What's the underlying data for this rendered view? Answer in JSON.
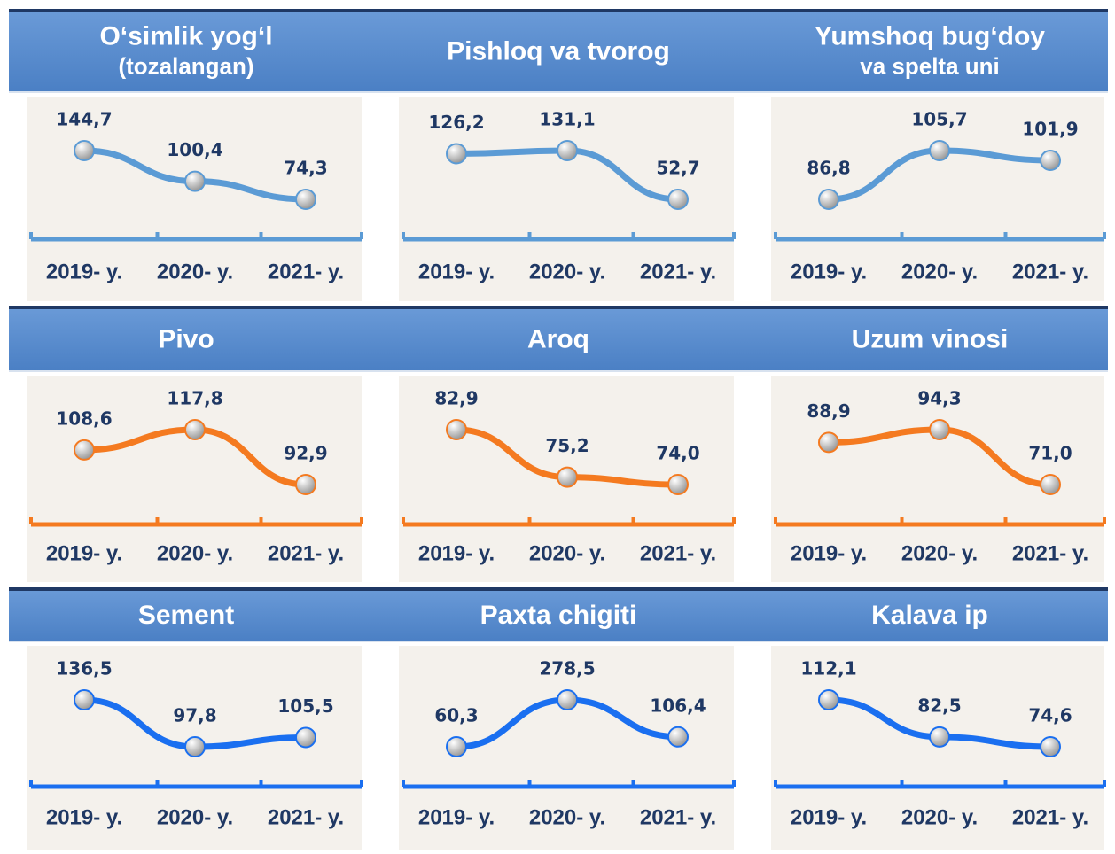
{
  "chart_data": [
    {
      "type": "line",
      "title": [
        "O‘simlik yog‘l",
        "(tozalangan)"
      ],
      "categories": [
        "2019- y.",
        "2020- y.",
        "2021- y."
      ],
      "values": [
        144.7,
        100.4,
        74.3
      ],
      "value_labels": [
        "144,7",
        "100,4",
        "74,3"
      ],
      "color": "#5b9bd5"
    },
    {
      "type": "line",
      "title": [
        "Pishloq va tvorog"
      ],
      "categories": [
        "2019- y.",
        "2020- y.",
        "2021- y."
      ],
      "values": [
        126.2,
        131.1,
        52.7
      ],
      "value_labels": [
        "126,2",
        "131,1",
        "52,7"
      ],
      "color": "#5b9bd5"
    },
    {
      "type": "line",
      "title": [
        "Yumshoq bug‘doy",
        "va spelta uni"
      ],
      "categories": [
        "2019- y.",
        "2020- y.",
        "2021- y."
      ],
      "values": [
        86.8,
        105.7,
        101.9
      ],
      "value_labels": [
        "86,8",
        "105,7",
        "101,9"
      ],
      "color": "#5b9bd5"
    },
    {
      "type": "line",
      "title": [
        "Pivo"
      ],
      "categories": [
        "2019- y.",
        "2020- y.",
        "2021- y."
      ],
      "values": [
        108.6,
        117.8,
        92.9
      ],
      "value_labels": [
        "108,6",
        "117,8",
        "92,9"
      ],
      "color": "#f47a20"
    },
    {
      "type": "line",
      "title": [
        "Aroq"
      ],
      "categories": [
        "2019- y.",
        "2020- y.",
        "2021- y."
      ],
      "values": [
        82.9,
        75.2,
        74.0
      ],
      "value_labels": [
        "82,9",
        "75,2",
        "74,0"
      ],
      "color": "#f47a20"
    },
    {
      "type": "line",
      "title": [
        "Uzum vinosi"
      ],
      "categories": [
        "2019- y.",
        "2020- y.",
        "2021- y."
      ],
      "values": [
        88.9,
        94.3,
        71.0
      ],
      "value_labels": [
        "88,9",
        "94,3",
        "71,0"
      ],
      "color": "#f47a20"
    },
    {
      "type": "line",
      "title": [
        "Sement"
      ],
      "categories": [
        "2019- y.",
        "2020- y.",
        "2021- y."
      ],
      "values": [
        136.5,
        97.8,
        105.5
      ],
      "value_labels": [
        "136,5",
        "97,8",
        "105,5"
      ],
      "color": "#1a6ff0"
    },
    {
      "type": "line",
      "title": [
        "Paxta chigiti"
      ],
      "categories": [
        "2019- y.",
        "2020- y.",
        "2021- y."
      ],
      "values": [
        60.3,
        278.5,
        106.4
      ],
      "value_labels": [
        "60,3",
        "278,5",
        "106,4"
      ],
      "color": "#1a6ff0"
    },
    {
      "type": "line",
      "title": [
        "Kalava ip"
      ],
      "categories": [
        "2019- y.",
        "2020- y.",
        "2021- y."
      ],
      "values": [
        112.1,
        82.5,
        74.6
      ],
      "value_labels": [
        "112,1",
        "82,5",
        "74,6"
      ],
      "color": "#1a6ff0"
    }
  ]
}
